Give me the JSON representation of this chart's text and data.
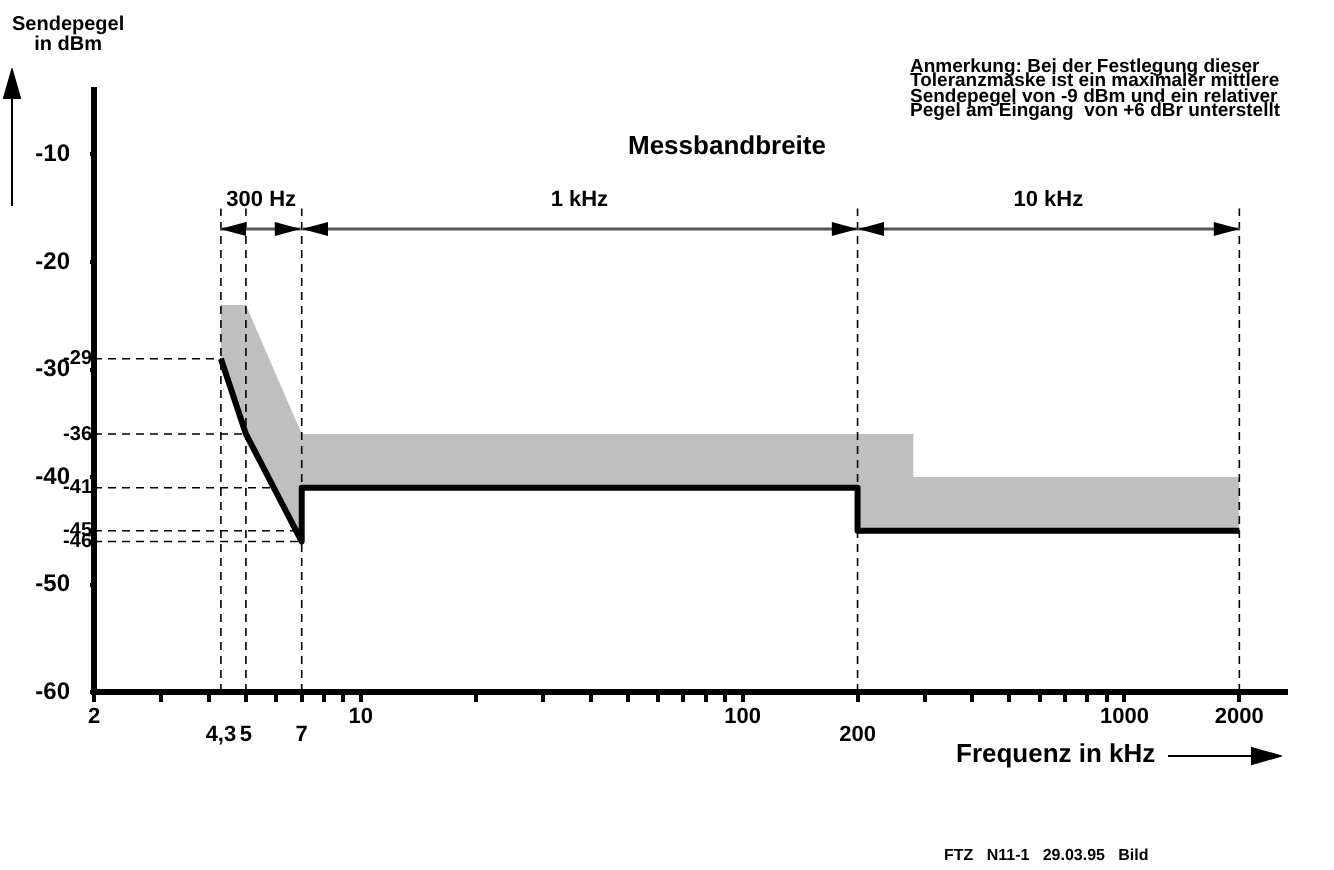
{
  "chart_data": {
    "type": "line",
    "xlabel": "Frequenz in kHz",
    "ylabel": "Sendepegel in dBm",
    "log": "x",
    "xlim": [
      2,
      2650
    ],
    "ylim": [
      -60,
      -4
    ],
    "xticks": [
      2,
      {
        "value": 3,
        "label": null
      },
      {
        "value": 4,
        "label": null
      },
      {
        "value": 5,
        "label": null
      },
      {
        "value": 6,
        "label": null
      },
      {
        "value": 7,
        "label": null
      },
      {
        "value": 8,
        "label": null
      },
      {
        "value": 9,
        "label": null
      },
      10,
      {
        "value": 20,
        "label": null
      },
      {
        "value": 30,
        "label": null
      },
      {
        "value": 40,
        "label": null
      },
      {
        "value": 50,
        "label": null
      },
      {
        "value": 60,
        "label": null
      },
      {
        "value": 70,
        "label": null
      },
      {
        "value": 80,
        "label": null
      },
      {
        "value": 90,
        "label": null
      },
      100,
      {
        "value": 200,
        "label": null
      },
      {
        "value": 300,
        "label": null
      },
      {
        "value": 400,
        "label": null
      },
      {
        "value": 500,
        "label": null
      },
      {
        "value": 600,
        "label": null
      },
      {
        "value": 700,
        "label": null
      },
      {
        "value": 800,
        "label": null
      },
      {
        "value": 900,
        "label": null
      },
      1000,
      2000
    ],
    "yticks": [
      -60,
      -50,
      -40,
      -30,
      -20,
      -10
    ],
    "grid": false,
    "legend": false,
    "marker": "none",
    "series": [
      {
        "color": "#000000",
        "x": [
          4.3,
          5,
          7,
          7,
          200,
          200,
          280,
          280,
          2000
        ],
        "values": [
          -29,
          -36,
          -46,
          -41,
          -41,
          -45,
          -45,
          -45,
          -45
        ],
        "lower": [
          -29,
          -36,
          -46,
          -41,
          -41,
          -45,
          -45,
          -45,
          -45
        ],
        "upper": [
          -24,
          -24,
          -36,
          -36,
          -36,
          -36,
          -36,
          -40,
          -40
        ]
      }
    ],
    "ref_lines": [
      {
        "axis": "y",
        "value": -29,
        "label": "-29",
        "line_style": "dashed"
      },
      {
        "axis": "y",
        "value": -36,
        "label": "-36",
        "line_style": "dashed"
      },
      {
        "axis": "y",
        "value": -41,
        "label": "-41",
        "line_style": "dashed"
      },
      {
        "axis": "y",
        "value": -45,
        "label": "-45",
        "line_style": "dashed"
      },
      {
        "axis": "y",
        "value": -46,
        "label": "-46",
        "line_style": "dashed"
      },
      {
        "axis": "x",
        "value": 4.3,
        "label": "4,3",
        "line_style": "dashed"
      },
      {
        "axis": "x",
        "value": 5,
        "label": "5",
        "line_style": "dashed"
      },
      {
        "axis": "x",
        "value": 7,
        "label": "7",
        "line_style": "dashed"
      },
      {
        "axis": "x",
        "value": 200,
        "label": "200",
        "line_style": "dashed"
      },
      {
        "axis": "x",
        "value": 2000,
        "label": null,
        "line_style": "dashed"
      }
    ],
    "annotations": [
      "Messbandbreite",
      "300 Hz",
      "1 kHz",
      "10 kHz",
      "Anmerkung: Bei der Festlegung dieser\nToleranzmaske ist ein maximaler mittlere\nSendepegel von -9 dBm und ein relativer\nPegel am Eingang  von +6 dBr unterstellt",
      "FTZ   N11-1   29.03.95   Bild"
    ]
  }
}
